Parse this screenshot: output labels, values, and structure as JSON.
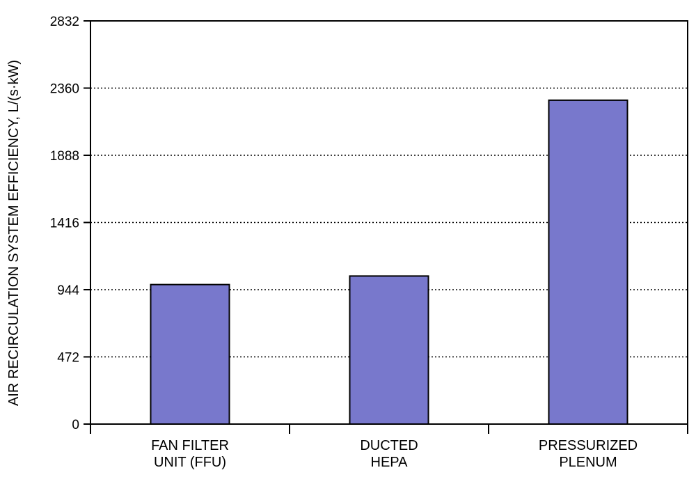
{
  "chart_data": {
    "type": "bar",
    "title": "",
    "xlabel": "",
    "ylabel": "AIR RECIRCULATION SYSTEM EFFICIENCY, L/(s·kW)",
    "categories": [
      [
        "FAN FILTER",
        "UNIT (FFU)"
      ],
      [
        "DUCTED",
        "HEPA"
      ],
      [
        "PRESSURIZED",
        "PLENUM"
      ]
    ],
    "values": [
      980,
      1040,
      2275
    ],
    "ylim": [
      0,
      2832
    ],
    "yticks": [
      "0",
      "472",
      "944",
      "1416",
      "1888",
      "2360",
      "2832"
    ],
    "grid": "horizontal dotted",
    "bar_color": "#7878cc"
  }
}
